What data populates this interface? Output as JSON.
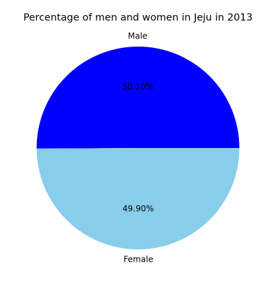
{
  "chart_data": {
    "type": "pie",
    "title": "Percentage of men and women in Jeju in 2013",
    "categories": [
      "Male",
      "Female"
    ],
    "values": [
      50.1,
      49.9
    ],
    "value_labels": [
      "50.10%",
      "49.90%"
    ],
    "colors": [
      "#0000ff",
      "#87ceeb"
    ],
    "start_angle_deg": 0,
    "direction": "counterclockwise"
  }
}
